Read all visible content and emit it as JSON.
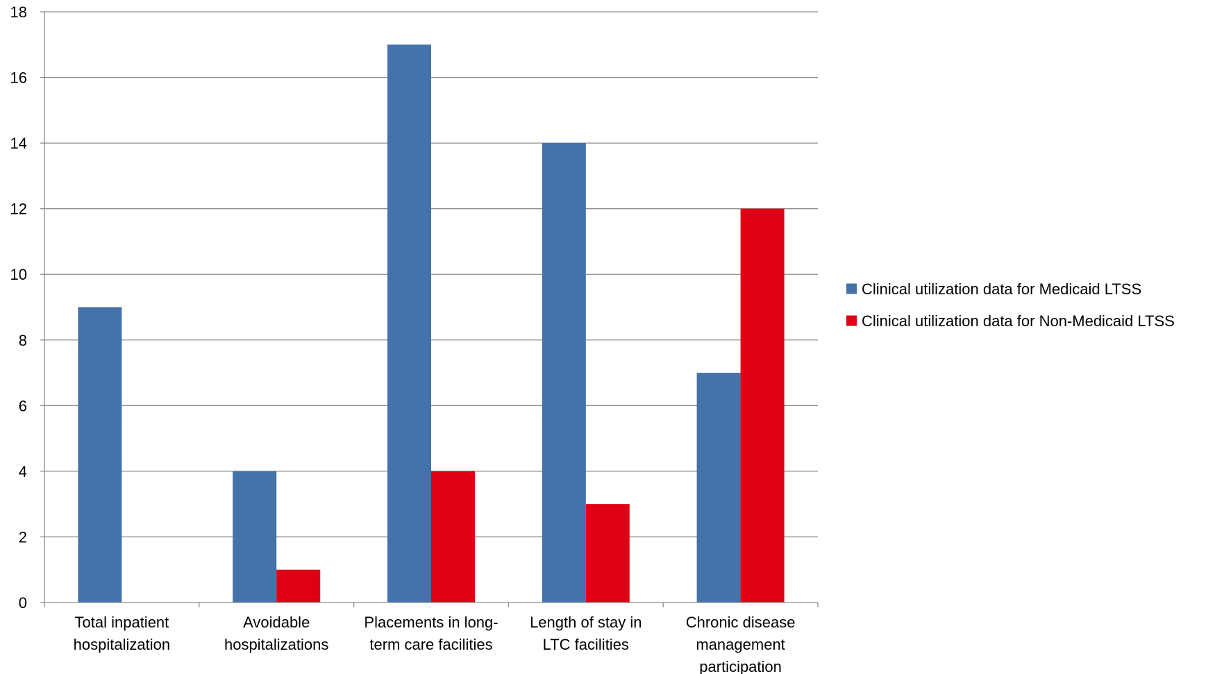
{
  "chart_data": {
    "type": "bar",
    "title": "",
    "xlabel": "",
    "ylabel": "",
    "ylim": [
      0,
      18
    ],
    "ytick_step": 2,
    "grid": true,
    "legend_position": "right",
    "categories": [
      "Total inpatient hospitalization",
      "Avoidable hospitalizations",
      "Placements in long-term care facilities",
      "Length of stay in LTC facilities",
      "Chronic disease management participation"
    ],
    "category_label_lines": [
      [
        "Total inpatient",
        "hospitalization"
      ],
      [
        "Avoidable",
        "hospitalizations"
      ],
      [
        "Placements in long-",
        "term care facilities"
      ],
      [
        "Length of stay in",
        "LTC facilities"
      ],
      [
        "Chronic disease",
        "management",
        "participation"
      ]
    ],
    "series": [
      {
        "name": "Clinical utilization data for Medicaid LTSS",
        "color": "#4472aa",
        "values": [
          9,
          4,
          17,
          14,
          7
        ]
      },
      {
        "name": "Clinical utilization data for Non-Medicaid LTSS",
        "color": "#e00016",
        "values": [
          0,
          1,
          4,
          3,
          12
        ]
      }
    ]
  }
}
